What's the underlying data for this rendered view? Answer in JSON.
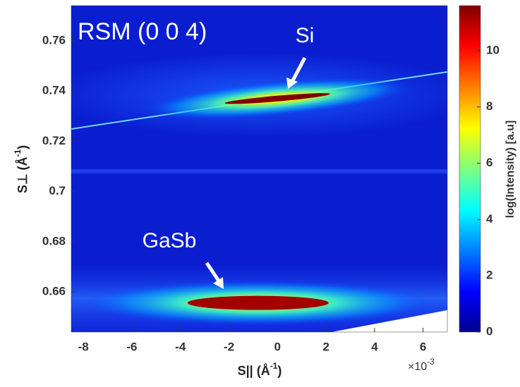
{
  "chart_data": {
    "type": "heatmap",
    "annotation": "RSM (0 0 4)",
    "x_label": "S|| (Å",
    "x_label_exponent": "-1",
    "x_label_end": ")",
    "x_multiplier": "×10",
    "x_multiplier_exponent": "-3",
    "y_label": "S⊥ (Å",
    "y_label_exponent": "-1",
    "y_label_end": ")",
    "colorbar_label": "log(Intensity) [a.u]",
    "xlim": [
      -8.5,
      7
    ],
    "xticks": [
      -8,
      -6,
      -4,
      -2,
      0,
      2,
      4,
      6
    ],
    "ylim": [
      0.644,
      0.774
    ],
    "yticks": [
      0.66,
      0.68,
      0.7,
      0.72,
      0.74,
      0.76
    ],
    "clim": [
      0,
      11.6
    ],
    "cticks": [
      0,
      2,
      4,
      6,
      8,
      10
    ],
    "colormap": "jet",
    "peaks": [
      {
        "name": "Si",
        "x": 0,
        "y": 0.737,
        "z": 11.6
      },
      {
        "name": "GaSb",
        "x": -0.8,
        "y": 0.6556,
        "z": 11.2
      }
    ]
  }
}
